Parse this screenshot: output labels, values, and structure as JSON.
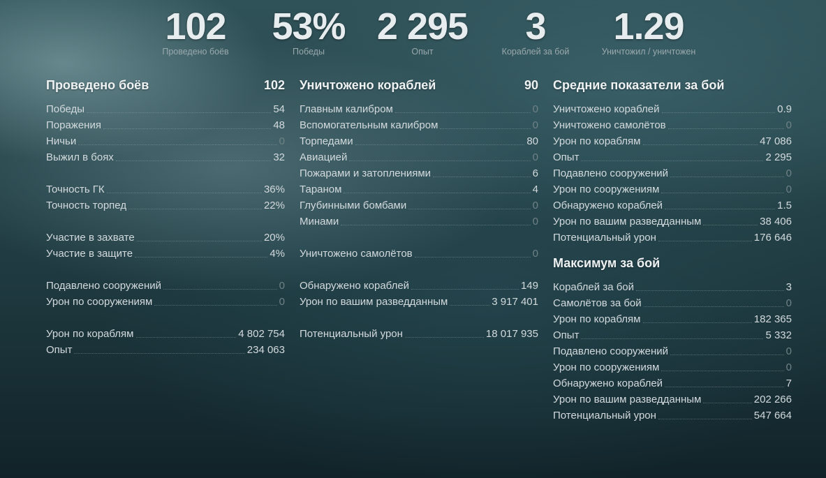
{
  "top_stats": [
    {
      "value": "102",
      "caption": "Проведено боёв"
    },
    {
      "value": "53%",
      "caption": "Победы"
    },
    {
      "value": "2 295",
      "caption": "Опыт"
    },
    {
      "value": "3",
      "caption": "Кораблей за бой"
    },
    {
      "value": "1.29",
      "caption": "Уничтожил / уничтожен"
    }
  ],
  "left": {
    "title": "Проведено боёв",
    "total": "102",
    "rows": [
      {
        "label": "Победы",
        "value": "54"
      },
      {
        "label": "Поражения",
        "value": "48"
      },
      {
        "label": "Ничьи",
        "value": "0"
      },
      {
        "label": "Выжил в боях",
        "value": "32"
      },
      {
        "label": "Точность ГК",
        "value": "36%"
      },
      {
        "label": "Точность торпед",
        "value": "22%"
      },
      {
        "label": "Участие в захвате",
        "value": "20%"
      },
      {
        "label": "Участие в защите",
        "value": "4%"
      },
      {
        "label": "Подавлено сооружений",
        "value": "0"
      },
      {
        "label": "Урон по сооружениям",
        "value": "0"
      },
      {
        "label": "Урон по кораблям",
        "value": "4 802 754"
      },
      {
        "label": "Опыт",
        "value": "234 063"
      }
    ]
  },
  "middle": {
    "title": "Уничтожено кораблей",
    "total": "90",
    "rows": [
      {
        "label": "Главным калибром",
        "value": "0"
      },
      {
        "label": "Вспомогательным калибром",
        "value": "0"
      },
      {
        "label": "Торпедами",
        "value": "80"
      },
      {
        "label": "Авиацией",
        "value": "0"
      },
      {
        "label": "Пожарами и затоплениями",
        "value": "6"
      },
      {
        "label": "Тараном",
        "value": "4"
      },
      {
        "label": "Глубинными бомбами",
        "value": "0"
      },
      {
        "label": "Минами",
        "value": "0"
      },
      {
        "label": "Уничтожено самолётов",
        "value": "0"
      },
      {
        "label": "Обнаружено кораблей",
        "value": "149"
      },
      {
        "label": "Урон по вашим разведданным",
        "value": "3 917 401"
      },
      {
        "label": "Потенциальный урон",
        "value": "18 017 935"
      }
    ]
  },
  "right": {
    "average_title": "Средние показатели за бой",
    "average_rows": [
      {
        "label": "Уничтожено кораблей",
        "value": "0.9"
      },
      {
        "label": "Уничтожено самолётов",
        "value": "0"
      },
      {
        "label": "Урон по кораблям",
        "value": "47 086"
      },
      {
        "label": "Опыт",
        "value": "2 295"
      },
      {
        "label": "Подавлено сооружений",
        "value": "0"
      },
      {
        "label": "Урон по сооружениям",
        "value": "0"
      },
      {
        "label": "Обнаружено кораблей",
        "value": "1.5"
      },
      {
        "label": "Урон по вашим разведданным",
        "value": "38 406"
      },
      {
        "label": "Потенциальный урон",
        "value": "176 646"
      }
    ],
    "max_title": "Максимум за бой",
    "max_rows": [
      {
        "label": "Кораблей за бой",
        "value": "3"
      },
      {
        "label": "Самолётов за бой",
        "value": "0"
      },
      {
        "label": "Урон по кораблям",
        "value": "182 365"
      },
      {
        "label": "Опыт",
        "value": "5 332"
      },
      {
        "label": "Подавлено сооружений",
        "value": "0"
      },
      {
        "label": "Урон по сооружениям",
        "value": "0"
      },
      {
        "label": "Обнаружено кораблей",
        "value": "7"
      },
      {
        "label": "Урон по вашим разведданным",
        "value": "202 266"
      },
      {
        "label": "Потенциальный урон",
        "value": "547 664"
      }
    ]
  },
  "colors": {
    "zero_value": "#6f8286",
    "text": "#d3dadd",
    "heading": "#eef2f3"
  }
}
